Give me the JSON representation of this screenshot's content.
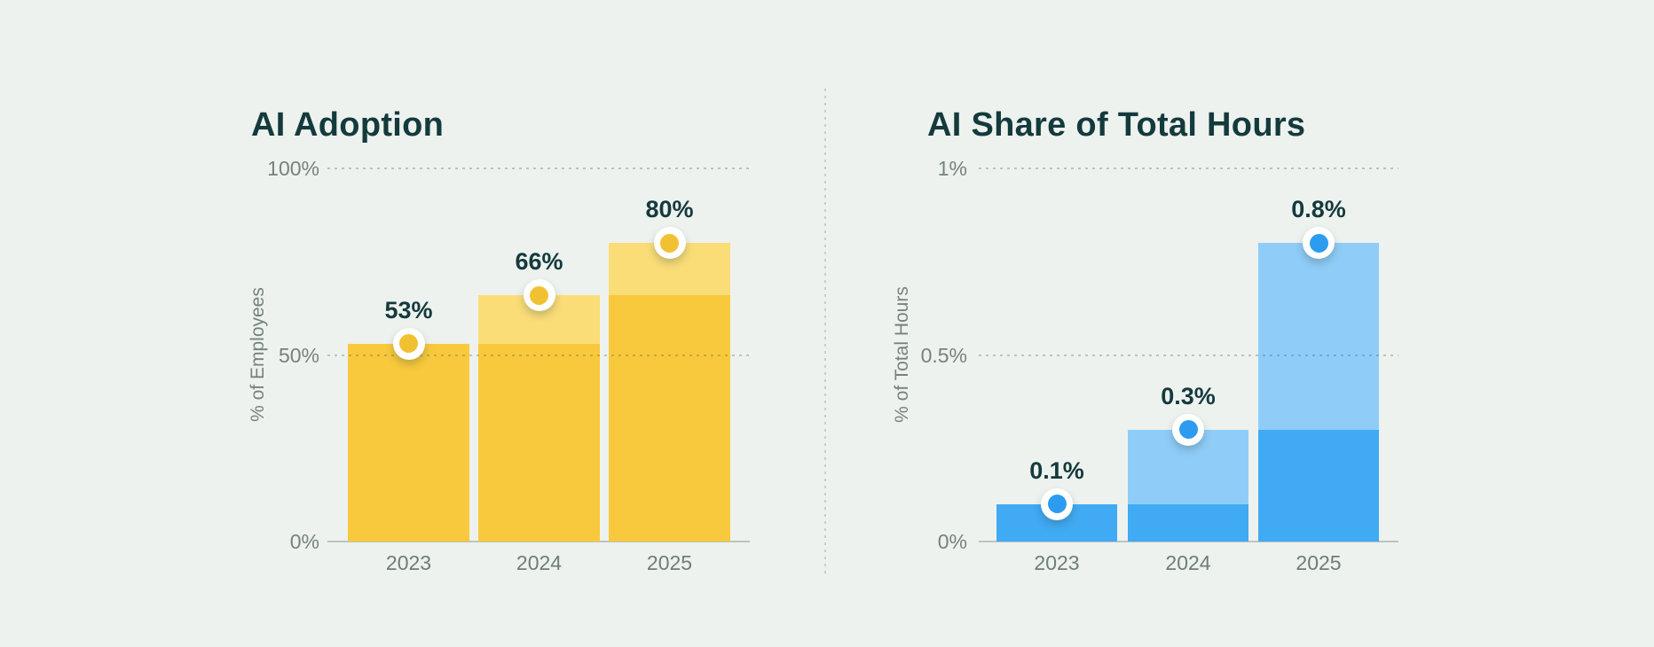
{
  "page": {
    "background": "#edf2ef"
  },
  "divider": {
    "style": "vertical-dotted",
    "color": "#c9cfcb"
  },
  "text_colors": {
    "title": "#143A3C",
    "value_label": "#143A3C",
    "tick": "#76827E",
    "category": "#6F7D79"
  },
  "chart_data": [
    {
      "type": "bar",
      "title": "AI Adoption",
      "ylabel": "% of Employees",
      "categories": [
        "2023",
        "2024",
        "2025"
      ],
      "values": [
        53,
        66,
        80
      ],
      "base_values": [
        53,
        53,
        66
      ],
      "data_labels": [
        "53%",
        "66%",
        "80%"
      ],
      "ylim": [
        0,
        100
      ],
      "yticks": [
        0,
        50,
        100
      ],
      "ytick_labels": [
        "0%",
        "50%",
        "100%"
      ],
      "grid": "horizontal dotted gridlines at 50% and 100%, solid axis line at 0%",
      "legend_position": "none",
      "note": "lighter top segment of each bar shows growth over previous year; round marker at each bar top",
      "colors": {
        "bar": "#F8C93C",
        "bar_light": "#FBDD78",
        "marker": "#F2C133",
        "marker_ring": "#FFFFFF"
      }
    },
    {
      "type": "bar",
      "title": "AI Share of Total Hours",
      "ylabel": "% of Total Hours",
      "categories": [
        "2023",
        "2024",
        "2025"
      ],
      "values": [
        0.1,
        0.3,
        0.8
      ],
      "base_values": [
        0.1,
        0.1,
        0.3
      ],
      "data_labels": [
        "0.1%",
        "0.3%",
        "0.8%"
      ],
      "ylim": [
        0,
        1
      ],
      "yticks": [
        0,
        0.5,
        1
      ],
      "ytick_labels": [
        "0%",
        "0.5%",
        "1%"
      ],
      "grid": "horizontal dotted gridlines at 0.5% and 1%, solid axis line at 0%",
      "legend_position": "none",
      "note": "lighter top segment of each bar shows growth over previous year; round marker at each bar top",
      "colors": {
        "bar": "#41AAF4",
        "bar_light": "#8FCDF8",
        "marker": "#2D9CF0",
        "marker_ring": "#FFFFFF"
      }
    }
  ]
}
